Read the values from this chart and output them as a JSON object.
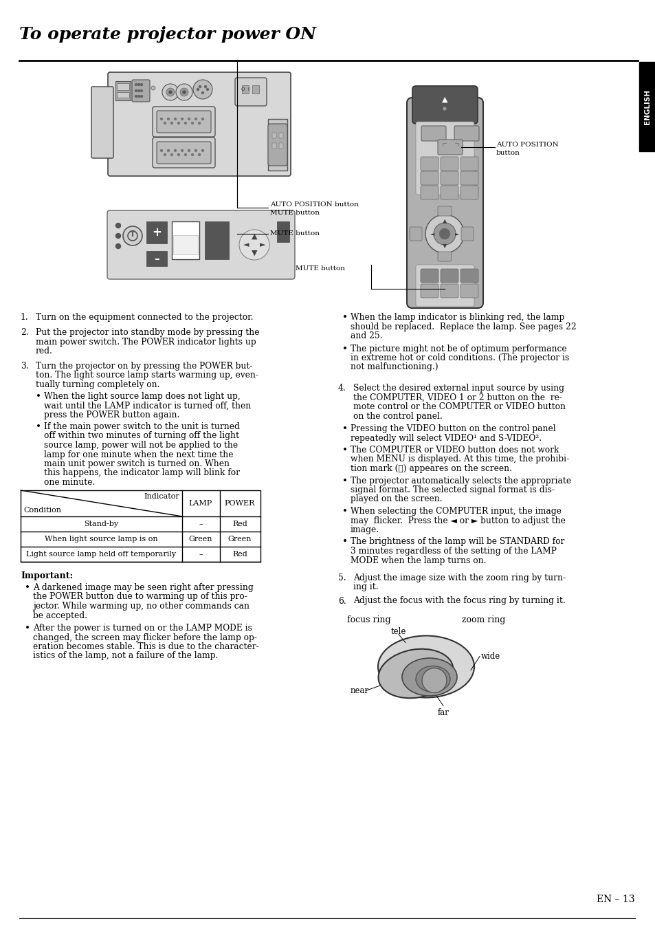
{
  "title": "To operate projector power ON",
  "page_number": "EN – 13",
  "sidebar_text": "ENGLISH",
  "background_color": "#ffffff"
}
